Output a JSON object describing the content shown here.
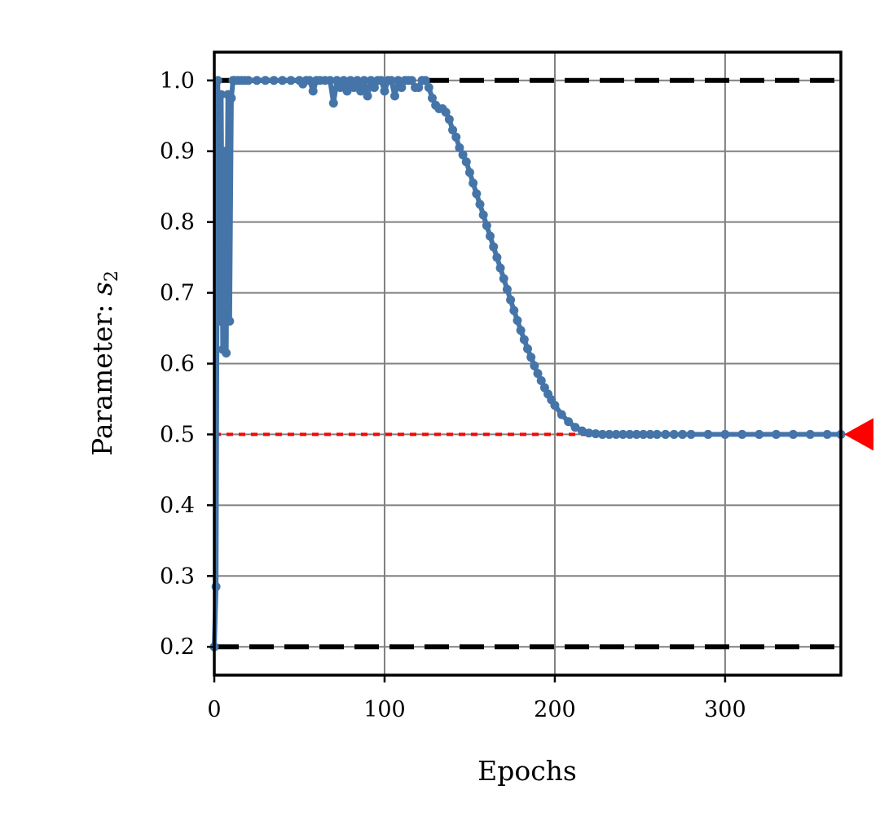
{
  "chart_data": {
    "type": "line",
    "xlabel": "Epochs",
    "ylabel": "Parameter: ",
    "ylabel_symbol": "s",
    "ylabel_subscript": "2",
    "xlim": [
      0,
      368
    ],
    "ylim": [
      0.16,
      1.04
    ],
    "xticks": [
      0,
      100,
      200,
      300
    ],
    "yticks": [
      0.2,
      0.3,
      0.4,
      0.5,
      0.6,
      0.7,
      0.8,
      0.9,
      1.0
    ],
    "xtick_labels": [
      "0",
      "100",
      "200",
      "300"
    ],
    "ytick_labels": [
      "0.2",
      "0.3",
      "0.4",
      "0.5",
      "0.6",
      "0.7",
      "0.8",
      "0.9",
      "1.0"
    ],
    "grid": true,
    "bounds": {
      "lower": 0.2,
      "upper": 1.0,
      "style": "black dashed"
    },
    "target": {
      "value": 0.5,
      "style": "red dotted",
      "marker": "red triangle at right edge"
    },
    "series": [
      {
        "color": "#4575a8",
        "x": [
          0,
          1,
          2,
          3,
          4,
          5,
          6,
          7,
          8,
          9,
          10,
          11,
          12,
          14,
          16,
          18,
          20,
          25,
          30,
          35,
          40,
          45,
          50,
          52,
          54,
          56,
          58,
          60,
          62,
          65,
          68,
          70,
          72,
          74,
          76,
          78,
          80,
          82,
          84,
          86,
          88,
          90,
          92,
          94,
          96,
          98,
          100,
          102,
          104,
          106,
          108,
          110,
          112,
          114,
          116,
          118,
          120,
          122,
          124,
          126,
          128,
          130,
          132,
          134,
          136,
          138,
          140,
          142,
          144,
          146,
          148,
          150,
          152,
          154,
          156,
          158,
          160,
          162,
          164,
          166,
          168,
          170,
          172,
          174,
          176,
          178,
          180,
          182,
          184,
          186,
          188,
          190,
          192,
          194,
          196,
          198,
          200,
          204,
          208,
          212,
          216,
          220,
          224,
          228,
          232,
          236,
          240,
          244,
          248,
          252,
          256,
          260,
          265,
          270,
          275,
          280,
          290,
          300,
          310,
          320,
          330,
          340,
          350,
          360,
          368
        ],
        "y": [
          0.2,
          0.285,
          1.0,
          0.66,
          0.98,
          0.62,
          0.9,
          0.615,
          0.98,
          0.66,
          0.975,
          1.0,
          1.0,
          1.0,
          1.0,
          1.0,
          1.0,
          1.0,
          1.0,
          1.0,
          1.0,
          1.0,
          1.0,
          0.995,
          1.0,
          1.0,
          0.985,
          1.0,
          1.0,
          1.0,
          1.0,
          0.968,
          1.0,
          0.99,
          1.0,
          0.985,
          1.0,
          0.99,
          1.0,
          0.985,
          1.0,
          0.978,
          1.0,
          0.99,
          1.0,
          1.0,
          0.985,
          1.0,
          1.0,
          0.978,
          1.0,
          0.99,
          1.0,
          1.0,
          1.0,
          0.99,
          0.99,
          1.0,
          1.0,
          0.99,
          0.975,
          0.965,
          0.96,
          0.96,
          0.955,
          0.945,
          0.93,
          0.92,
          0.905,
          0.895,
          0.885,
          0.87,
          0.855,
          0.84,
          0.825,
          0.81,
          0.795,
          0.78,
          0.765,
          0.75,
          0.735,
          0.72,
          0.705,
          0.69,
          0.675,
          0.661,
          0.647,
          0.634,
          0.621,
          0.609,
          0.597,
          0.586,
          0.576,
          0.566,
          0.557,
          0.549,
          0.541,
          0.528,
          0.518,
          0.51,
          0.505,
          0.502,
          0.501,
          0.5,
          0.5,
          0.5,
          0.5,
          0.5,
          0.5,
          0.5,
          0.5,
          0.5,
          0.5,
          0.5,
          0.5,
          0.5,
          0.5,
          0.5,
          0.5,
          0.5,
          0.5,
          0.5,
          0.5,
          0.5,
          0.5
        ]
      }
    ]
  },
  "colors": {
    "series": "#4575a8",
    "grid": "#808080",
    "bounds": "#000000",
    "target": "#ff0000"
  }
}
